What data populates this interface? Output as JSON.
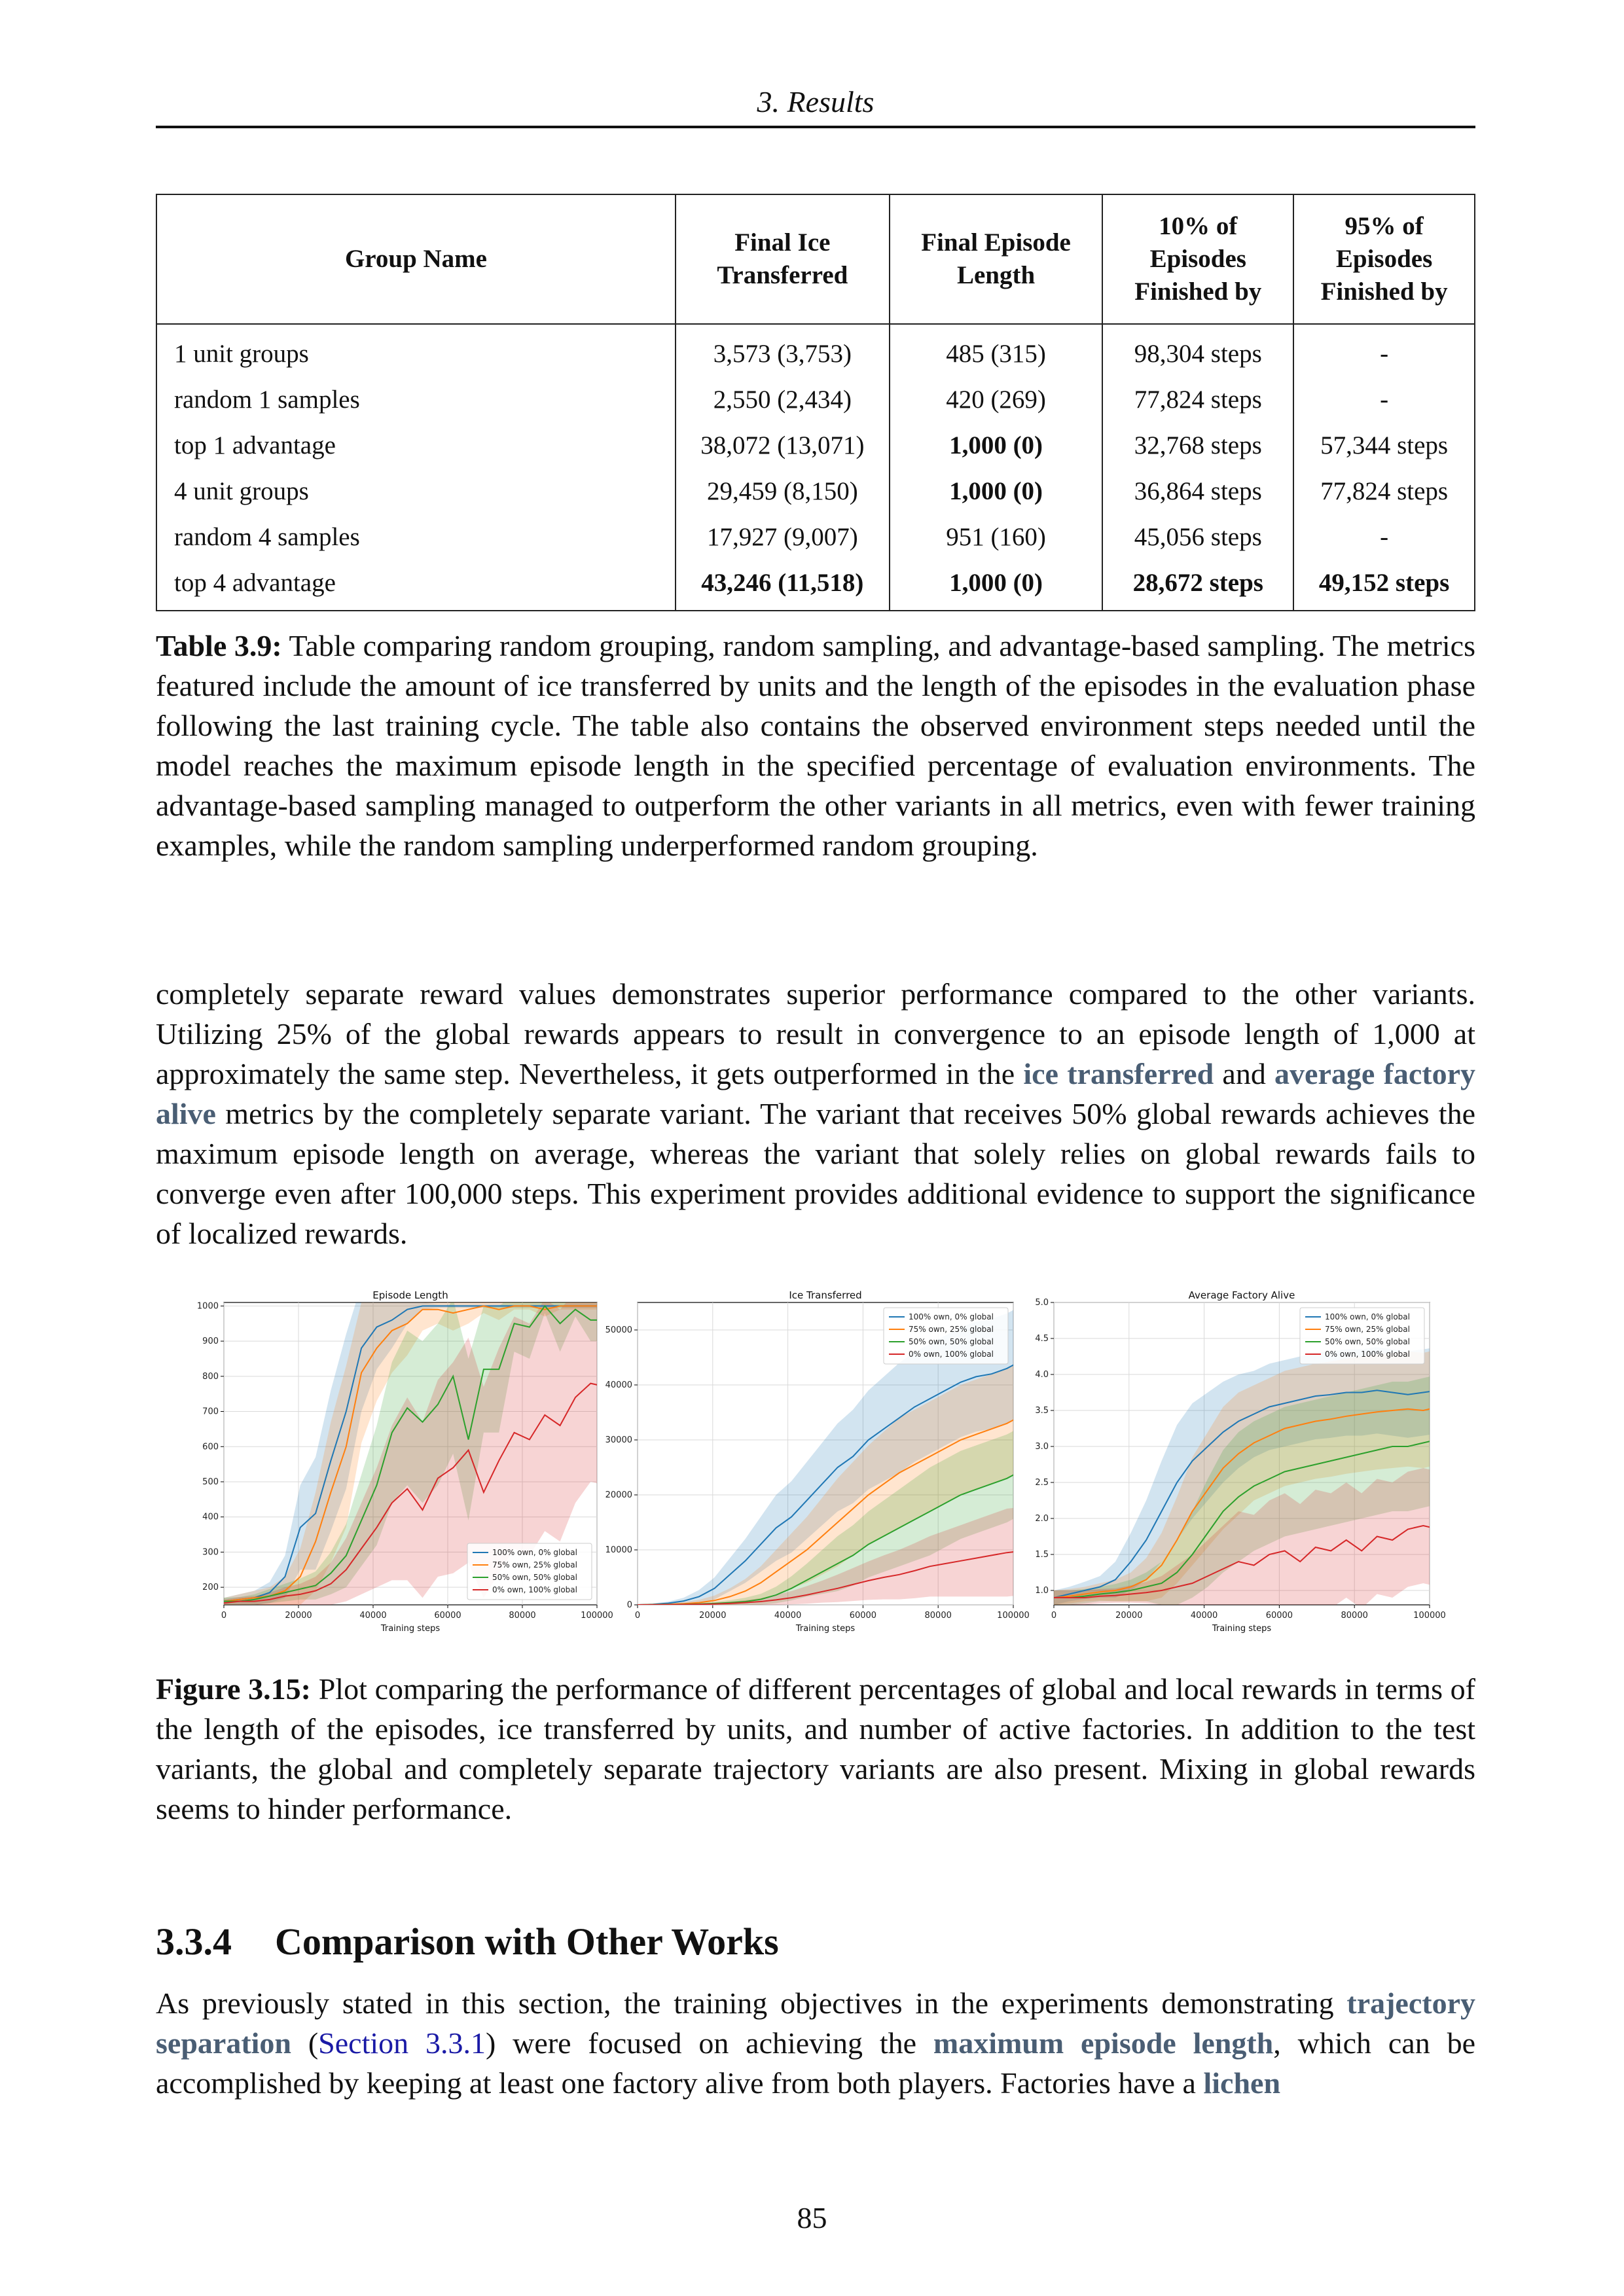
{
  "header": {
    "running_title": "3. Results"
  },
  "table": {
    "columns": [
      "Group Name",
      "Final Ice Transferred",
      "Final Episode Length",
      "10% of Episodes Finished by",
      "95% of Episodes Finished by"
    ],
    "rows": [
      {
        "name": "1 unit groups",
        "ice": "3,573 (3,753)",
        "length": "485 (315)",
        "p10": "98,304 steps",
        "p95": "-"
      },
      {
        "name": "random 1 samples",
        "ice": "2,550 (2,434)",
        "length": "420 (269)",
        "p10": "77,824 steps",
        "p95": "-"
      },
      {
        "name": "top 1 advantage",
        "ice": "38,072 (13,071)",
        "length": "1,000 (0)",
        "p10": "32,768 steps",
        "p95": "57,344 steps"
      },
      {
        "name": "4 unit groups",
        "ice": "29,459 (8,150)",
        "length": "1,000 (0)",
        "p10": "36,864 steps",
        "p95": "77,824 steps"
      },
      {
        "name": "random 4 samples",
        "ice": "17,927 (9,007)",
        "length": "951 (160)",
        "p10": "45,056 steps",
        "p95": "-"
      },
      {
        "name": "top 4 advantage",
        "ice": "43,246 (11,518)",
        "length": "1,000 (0)",
        "p10": "28,672 steps",
        "p95": "49,152 steps"
      }
    ],
    "caption_label": "Table 3.9:",
    "caption_text": "Table comparing random grouping, random sampling, and advantage-based sampling. The metrics featured include the amount of ice transferred by units and the length of the episodes in the evaluation phase following the last training cycle. The table also contains the observed environment steps needed until the model reaches the maximum episode length in the specified percentage of evaluation environments. The advantage-based sampling managed to outperform the other variants in all metrics, even with fewer training examples, while the random sampling underperformed random grouping."
  },
  "body_paragraph": {
    "part1": "completely separate reward values demonstrates superior performance compared to the other variants. Utilizing 25% of the global rewards appears to result in convergence to an episode length of 1,000 at approximately the same step. Nevertheless, it gets outperformed in the ",
    "term1": "ice transferred",
    "part2": " and ",
    "term2": "average factory alive",
    "part3": " metrics by the completely separate variant. The variant that receives 50% global rewards achieves the maximum episode length on average, whereas the variant that solely relies on global rewards fails to converge even after 100,000 steps. This experiment provides additional evidence to support the significance of localized rewards."
  },
  "chart_data": [
    {
      "type": "line",
      "title": "Episode Length",
      "xlabel": "Training steps",
      "ylabel": "",
      "xlim": [
        0,
        100000
      ],
      "ylim": [
        150,
        1010
      ],
      "xticks": [
        0,
        20000,
        40000,
        60000,
        80000,
        100000
      ],
      "yticks": [
        200,
        300,
        400,
        500,
        600,
        700,
        800,
        900,
        1000
      ],
      "grid": true,
      "legend": "lower-right",
      "x": [
        0,
        4096,
        8192,
        12288,
        16384,
        20480,
        24576,
        28672,
        32768,
        36864,
        40960,
        45056,
        49152,
        53248,
        57344,
        61440,
        65536,
        69632,
        73728,
        77824,
        81920,
        86016,
        90112,
        94208,
        98304,
        102400
      ],
      "series": [
        {
          "name": "100% own, 0% global",
          "color": "#1f77b4",
          "values": [
            160,
            165,
            170,
            185,
            230,
            370,
            410,
            560,
            700,
            880,
            940,
            960,
            990,
            1000,
            1000,
            1000,
            1000,
            1000,
            1000,
            1000,
            1000,
            1000,
            1000,
            1000,
            1000,
            1000
          ],
          "spread": [
            10,
            15,
            20,
            30,
            60,
            120,
            160,
            200,
            220,
            180,
            120,
            80,
            40,
            10,
            5,
            5,
            5,
            5,
            5,
            5,
            5,
            5,
            5,
            5,
            5,
            5
          ]
        },
        {
          "name": "75% own, 25% global",
          "color": "#ff7f0e",
          "values": [
            160,
            165,
            170,
            175,
            190,
            230,
            330,
            470,
            600,
            810,
            880,
            930,
            950,
            990,
            990,
            980,
            990,
            1000,
            990,
            1000,
            1000,
            990,
            1000,
            1000,
            1000,
            1000
          ],
          "spread": [
            10,
            15,
            20,
            25,
            40,
            80,
            140,
            200,
            230,
            200,
            150,
            120,
            90,
            60,
            40,
            50,
            40,
            20,
            30,
            10,
            10,
            20,
            10,
            10,
            10,
            10
          ]
        },
        {
          "name": "50% own, 50% global",
          "color": "#2ca02c",
          "values": [
            160,
            160,
            165,
            175,
            185,
            195,
            205,
            240,
            290,
            390,
            490,
            640,
            710,
            670,
            720,
            800,
            620,
            820,
            820,
            950,
            940,
            1000,
            950,
            990,
            960,
            960
          ],
          "spread": [
            10,
            12,
            15,
            20,
            25,
            30,
            40,
            60,
            90,
            130,
            170,
            200,
            220,
            230,
            230,
            220,
            230,
            180,
            180,
            80,
            90,
            20,
            80,
            20,
            60,
            60
          ]
        },
        {
          "name": "0% own, 100% global",
          "color": "#d62728",
          "values": [
            155,
            160,
            160,
            165,
            175,
            180,
            190,
            210,
            250,
            310,
            370,
            440,
            480,
            420,
            510,
            540,
            590,
            470,
            560,
            640,
            620,
            690,
            660,
            740,
            780,
            770
          ],
          "spread": [
            10,
            12,
            15,
            20,
            25,
            30,
            40,
            60,
            90,
            130,
            170,
            220,
            260,
            250,
            280,
            300,
            320,
            300,
            320,
            330,
            330,
            330,
            330,
            300,
            280,
            280
          ]
        }
      ]
    },
    {
      "type": "line",
      "title": "Ice Transferred",
      "xlabel": "Training steps",
      "ylabel": "",
      "xlim": [
        0,
        100000
      ],
      "ylim": [
        0,
        55000
      ],
      "xticks": [
        0,
        20000,
        40000,
        60000,
        80000,
        100000
      ],
      "yticks": [
        0,
        10000,
        20000,
        30000,
        40000,
        50000
      ],
      "grid": true,
      "legend": "top-right",
      "x": [
        0,
        4096,
        8192,
        12288,
        16384,
        20480,
        24576,
        28672,
        32768,
        36864,
        40960,
        45056,
        49152,
        53248,
        57344,
        61440,
        65536,
        69632,
        73728,
        77824,
        81920,
        86016,
        90112,
        94208,
        98304,
        102400
      ],
      "series": [
        {
          "name": "100% own, 0% global",
          "color": "#1f77b4",
          "values": [
            0,
            100,
            300,
            700,
            1500,
            3000,
            5500,
            8000,
            11000,
            14000,
            16000,
            19000,
            22000,
            25000,
            27000,
            30000,
            32000,
            34000,
            36000,
            37500,
            39000,
            40500,
            41500,
            42000,
            43000,
            44500
          ],
          "spread": [
            50,
            150,
            300,
            600,
            1200,
            2000,
            3000,
            4000,
            5000,
            6000,
            6500,
            7000,
            7500,
            8000,
            8500,
            9000,
            9500,
            10000,
            10000,
            10000,
            10000,
            10000,
            10000,
            10000,
            10000,
            10000
          ]
        },
        {
          "name": "75% own, 25% global",
          "color": "#ff7f0e",
          "values": [
            0,
            50,
            100,
            200,
            400,
            800,
            1500,
            2500,
            4000,
            6000,
            8000,
            10000,
            12500,
            15000,
            17500,
            20000,
            22000,
            24000,
            25500,
            27000,
            28500,
            30000,
            31000,
            32000,
            33000,
            34500
          ],
          "spread": [
            30,
            80,
            150,
            300,
            500,
            900,
            1500,
            2200,
            3000,
            4000,
            5000,
            6000,
            7000,
            8000,
            8500,
            9000,
            9500,
            10000,
            10000,
            10000,
            10000,
            10000,
            10000,
            10000,
            10000,
            10000
          ]
        },
        {
          "name": "50% own, 50% global",
          "color": "#2ca02c",
          "values": [
            0,
            20,
            50,
            100,
            150,
            250,
            400,
            600,
            1000,
            1800,
            3000,
            4500,
            6000,
            7500,
            9000,
            11000,
            12500,
            14000,
            15500,
            17000,
            18500,
            20000,
            21000,
            22000,
            23000,
            24500
          ],
          "spread": [
            20,
            40,
            80,
            120,
            180,
            300,
            450,
            700,
            1000,
            1500,
            2200,
            3000,
            4000,
            5000,
            5500,
            6000,
            6500,
            7000,
            7500,
            8000,
            8000,
            8000,
            8000,
            8000,
            8000,
            8000
          ]
        },
        {
          "name": "0% own, 100% global",
          "color": "#d62728",
          "values": [
            0,
            10,
            30,
            60,
            100,
            150,
            250,
            400,
            600,
            900,
            1300,
            1800,
            2400,
            3000,
            3700,
            4400,
            5000,
            5500,
            6200,
            7000,
            7500,
            8000,
            8500,
            9000,
            9500,
            9800
          ],
          "spread": [
            10,
            20,
            40,
            80,
            120,
            180,
            300,
            450,
            600,
            900,
            1200,
            1600,
            2000,
            2500,
            3000,
            3500,
            4000,
            4500,
            5000,
            5500,
            6000,
            6500,
            7000,
            7500,
            8000,
            8000
          ]
        }
      ]
    },
    {
      "type": "line",
      "title": "Average Factory Alive",
      "xlabel": "Training steps",
      "ylabel": "",
      "xlim": [
        0,
        100000
      ],
      "ylim": [
        0.8,
        5.0
      ],
      "xticks": [
        0,
        20000,
        40000,
        60000,
        80000,
        100000
      ],
      "yticks": [
        1.0,
        1.5,
        2.0,
        2.5,
        3.0,
        3.5,
        4.0,
        4.5,
        5.0
      ],
      "grid": true,
      "legend": "top-right",
      "x": [
        0,
        4096,
        8192,
        12288,
        16384,
        20480,
        24576,
        28672,
        32768,
        36864,
        40960,
        45056,
        49152,
        53248,
        57344,
        61440,
        65536,
        69632,
        73728,
        77824,
        81920,
        86016,
        90112,
        94208,
        98304,
        102400
      ],
      "series": [
        {
          "name": "100% own, 0% global",
          "color": "#1f77b4",
          "values": [
            0.9,
            0.95,
            1.0,
            1.05,
            1.15,
            1.4,
            1.7,
            2.1,
            2.5,
            2.8,
            3.0,
            3.2,
            3.35,
            3.45,
            3.55,
            3.6,
            3.65,
            3.7,
            3.72,
            3.75,
            3.75,
            3.78,
            3.75,
            3.72,
            3.75,
            3.78
          ],
          "spread": [
            0.1,
            0.1,
            0.12,
            0.15,
            0.25,
            0.4,
            0.55,
            0.7,
            0.8,
            0.8,
            0.75,
            0.7,
            0.65,
            0.6,
            0.6,
            0.6,
            0.6,
            0.6,
            0.6,
            0.6,
            0.6,
            0.6,
            0.6,
            0.6,
            0.6,
            0.6
          ]
        },
        {
          "name": "75% own, 25% global",
          "color": "#ff7f0e",
          "values": [
            0.9,
            0.92,
            0.95,
            0.98,
            1.0,
            1.05,
            1.15,
            1.35,
            1.7,
            2.1,
            2.4,
            2.7,
            2.9,
            3.05,
            3.15,
            3.25,
            3.3,
            3.35,
            3.38,
            3.42,
            3.45,
            3.48,
            3.5,
            3.52,
            3.5,
            3.55
          ],
          "spread": [
            0.1,
            0.1,
            0.1,
            0.12,
            0.15,
            0.2,
            0.3,
            0.45,
            0.6,
            0.75,
            0.8,
            0.85,
            0.85,
            0.8,
            0.8,
            0.8,
            0.8,
            0.8,
            0.8,
            0.8,
            0.8,
            0.8,
            0.8,
            0.8,
            0.8,
            0.8
          ]
        },
        {
          "name": "50% own, 50% global",
          "color": "#2ca02c",
          "values": [
            0.9,
            0.9,
            0.92,
            0.95,
            0.97,
            1.0,
            1.05,
            1.1,
            1.25,
            1.5,
            1.8,
            2.1,
            2.3,
            2.45,
            2.55,
            2.65,
            2.7,
            2.75,
            2.8,
            2.85,
            2.9,
            2.95,
            3.0,
            3.0,
            3.05,
            3.1
          ],
          "spread": [
            0.1,
            0.1,
            0.1,
            0.1,
            0.12,
            0.15,
            0.2,
            0.3,
            0.45,
            0.6,
            0.75,
            0.85,
            0.9,
            0.9,
            0.9,
            0.9,
            0.9,
            0.9,
            0.9,
            0.9,
            0.9,
            0.9,
            0.9,
            0.9,
            0.9,
            0.9
          ]
        },
        {
          "name": "0% own, 100% global",
          "color": "#d62728",
          "values": [
            0.9,
            0.9,
            0.9,
            0.92,
            0.93,
            0.95,
            0.97,
            1.0,
            1.05,
            1.1,
            1.2,
            1.3,
            1.4,
            1.35,
            1.5,
            1.55,
            1.4,
            1.6,
            1.55,
            1.7,
            1.55,
            1.75,
            1.7,
            1.85,
            1.9,
            1.85
          ],
          "spread": [
            0.1,
            0.1,
            0.1,
            0.1,
            0.1,
            0.12,
            0.15,
            0.2,
            0.3,
            0.4,
            0.5,
            0.6,
            0.7,
            0.7,
            0.75,
            0.8,
            0.8,
            0.8,
            0.8,
            0.8,
            0.8,
            0.8,
            0.8,
            0.8,
            0.8,
            0.8
          ]
        }
      ]
    }
  ],
  "figure": {
    "caption_label": "Figure 3.15:",
    "caption_text": "Plot comparing the performance of different percentages of global and local rewards in terms of the length of the episodes, ice transferred by units, and number of active factories. In addition to the test variants, the global and completely separate trajectory variants are also present. Mixing in global rewards seems to hinder performance."
  },
  "section": {
    "number": "3.3.4",
    "title": "Comparison with Other Works"
  },
  "last_paragraph": {
    "part1": "As previously stated in this section, the training objectives in the experiments demonstrating ",
    "term1": "trajectory separation",
    "part2": " (",
    "ref1": "Section 3.3.1",
    "part3": ") were focused on achieving the ",
    "term2": "maximum episode length",
    "part4": ", which can be accomplished by keeping at least one factory alive from both players. Factories have a ",
    "term3": "lichen"
  },
  "footer": {
    "page_number": "85"
  },
  "colors": {
    "accent_term": "#4a5e74",
    "link": "#1a1aa6"
  }
}
